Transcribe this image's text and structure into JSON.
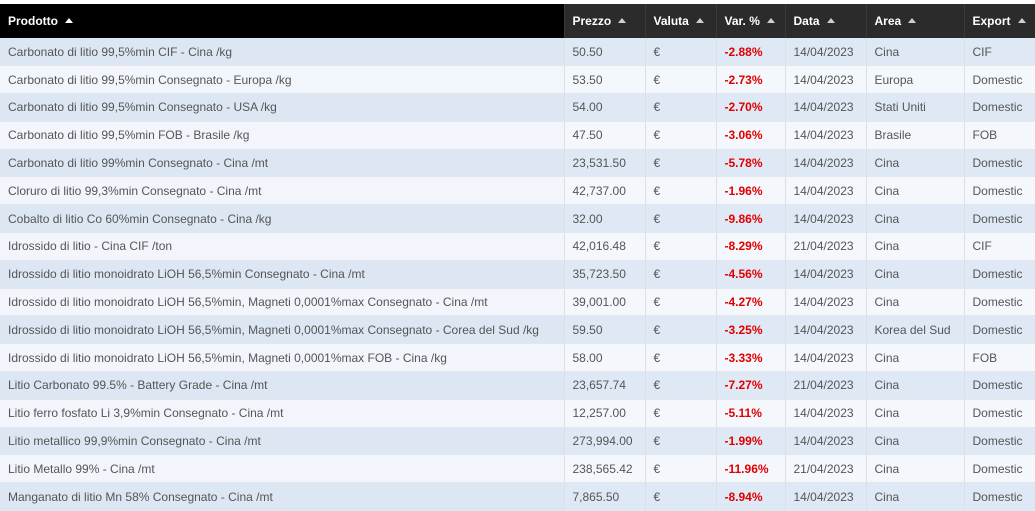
{
  "columns": [
    {
      "key": "prodotto",
      "label": "Prodotto"
    },
    {
      "key": "prezzo",
      "label": "Prezzo"
    },
    {
      "key": "valuta",
      "label": "Valuta"
    },
    {
      "key": "var",
      "label": "Var. %"
    },
    {
      "key": "data",
      "label": "Data"
    },
    {
      "key": "area",
      "label": "Area"
    },
    {
      "key": "export",
      "label": "Export"
    }
  ],
  "colors": {
    "header_bg": "#000000",
    "negative": "#e10000",
    "row_odd": "#dfe9f5",
    "row_even": "#f4f7fc"
  },
  "rows": [
    {
      "prodotto": "Carbonato di litio 99,5%min CIF - Cina /kg",
      "prezzo": "50.50",
      "valuta": "€",
      "var": "-2.88%",
      "data": "14/04/2023",
      "area": "Cina",
      "export": "CIF"
    },
    {
      "prodotto": "Carbonato di litio 99,5%min Consegnato - Europa /kg",
      "prezzo": "53.50",
      "valuta": "€",
      "var": "-2.73%",
      "data": "14/04/2023",
      "area": "Europa",
      "export": "Domestic"
    },
    {
      "prodotto": "Carbonato di litio 99,5%min Consegnato - USA /kg",
      "prezzo": "54.00",
      "valuta": "€",
      "var": "-2.70%",
      "data": "14/04/2023",
      "area": "Stati Uniti",
      "export": "Domestic"
    },
    {
      "prodotto": "Carbonato di litio 99,5%min FOB - Brasile /kg",
      "prezzo": "47.50",
      "valuta": "€",
      "var": "-3.06%",
      "data": "14/04/2023",
      "area": "Brasile",
      "export": "FOB"
    },
    {
      "prodotto": "Carbonato di litio 99%min Consegnato - Cina /mt",
      "prezzo": "23,531.50",
      "valuta": "€",
      "var": "-5.78%",
      "data": "14/04/2023",
      "area": "Cina",
      "export": "Domestic"
    },
    {
      "prodotto": "Cloruro di litio 99,3%min Consegnato - Cina /mt",
      "prezzo": "42,737.00",
      "valuta": "€",
      "var": "-1.96%",
      "data": "14/04/2023",
      "area": "Cina",
      "export": "Domestic"
    },
    {
      "prodotto": "Cobalto di litio Co 60%min Consegnato - Cina /kg",
      "prezzo": "32.00",
      "valuta": "€",
      "var": "-9.86%",
      "data": "14/04/2023",
      "area": "Cina",
      "export": "Domestic"
    },
    {
      "prodotto": "Idrossido di litio - Cina CIF /ton",
      "prezzo": "42,016.48",
      "valuta": "€",
      "var": "-8.29%",
      "data": "21/04/2023",
      "area": "Cina",
      "export": "CIF"
    },
    {
      "prodotto": "Idrossido di litio monoidrato LiOH 56,5%min Consegnato - Cina /mt",
      "prezzo": "35,723.50",
      "valuta": "€",
      "var": "-4.56%",
      "data": "14/04/2023",
      "area": "Cina",
      "export": "Domestic"
    },
    {
      "prodotto": "Idrossido di litio monoidrato LiOH 56,5%min, Magneti 0,0001%max Consegnato - Cina /mt",
      "prezzo": "39,001.00",
      "valuta": "€",
      "var": "-4.27%",
      "data": "14/04/2023",
      "area": "Cina",
      "export": "Domestic"
    },
    {
      "prodotto": "Idrossido di litio monoidrato LiOH 56,5%min, Magneti 0,0001%max Consegnato - Corea del Sud /kg",
      "prezzo": "59.50",
      "valuta": "€",
      "var": "-3.25%",
      "data": "14/04/2023",
      "area": "Korea del Sud",
      "export": "Domestic"
    },
    {
      "prodotto": "Idrossido di litio monoidrato LiOH 56,5%min, Magneti 0,0001%max FOB - Cina /kg",
      "prezzo": "58.00",
      "valuta": "€",
      "var": "-3.33%",
      "data": "14/04/2023",
      "area": "Cina",
      "export": "FOB"
    },
    {
      "prodotto": "Litio Carbonato 99.5% - Battery Grade - Cina /mt",
      "prezzo": "23,657.74",
      "valuta": "€",
      "var": "-7.27%",
      "data": "21/04/2023",
      "area": "Cina",
      "export": "Domestic"
    },
    {
      "prodotto": "Litio ferro fosfato Li 3,9%min Consegnato - Cina /mt",
      "prezzo": "12,257.00",
      "valuta": "€",
      "var": "-5.11%",
      "data": "14/04/2023",
      "area": "Cina",
      "export": "Domestic"
    },
    {
      "prodotto": "Litio metallico 99,9%min Consegnato - Cina /mt",
      "prezzo": "273,994.00",
      "valuta": "€",
      "var": "-1.99%",
      "data": "14/04/2023",
      "area": "Cina",
      "export": "Domestic"
    },
    {
      "prodotto": "Litio Metallo 99% - Cina /mt",
      "prezzo": "238,565.42",
      "valuta": "€",
      "var": "-11.96%",
      "data": "21/04/2023",
      "area": "Cina",
      "export": "Domestic"
    },
    {
      "prodotto": "Manganato di litio Mn 58% Consegnato - Cina /mt",
      "prezzo": "7,865.50",
      "valuta": "€",
      "var": "-8.94%",
      "data": "14/04/2023",
      "area": "Cina",
      "export": "Domestic"
    }
  ]
}
